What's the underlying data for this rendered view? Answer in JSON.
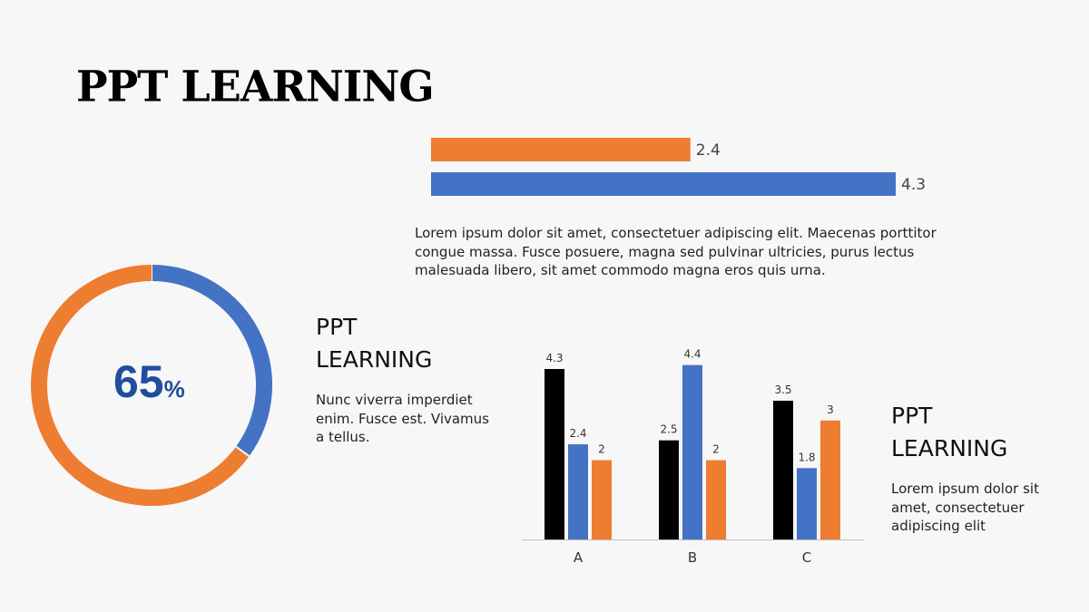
{
  "title": "PPT LEARNING",
  "top_paragraph": "Lorem ipsum dolor sit amet, consectetuer adipiscing elit. Maecenas porttitor congue massa. Fusce posuere, magna sed pulvinar ultricies, purus lectus malesuada libero, sit amet commodo magna eros quis urna.",
  "middle_block": {
    "heading": "PPT LEARNING",
    "text": "Nunc viverra imperdiet enim. Fusce est. Vivamus a tellus."
  },
  "right_block": {
    "heading": "PPT LEARNING",
    "text": "Lorem ipsum dolor sit amet, consectetuer adipiscing elit"
  },
  "colors": {
    "orange": "#ed7d31",
    "blue": "#4472c4",
    "black": "#000000",
    "dark_blue_text": "#1f4e9e"
  },
  "chart_data": [
    {
      "type": "bar",
      "orientation": "horizontal",
      "values": [
        2.4,
        4.3
      ],
      "labels": [
        "2.4",
        "4.3"
      ],
      "colors": [
        "#ed7d31",
        "#4472c4"
      ],
      "xlim": [
        0,
        4.3
      ]
    },
    {
      "type": "pie",
      "variant": "donut",
      "center_label": {
        "value": "65",
        "unit": "%"
      },
      "slices": [
        {
          "value": 35,
          "color": "#4472c4"
        },
        {
          "value": 65,
          "color": "#ed7d31"
        }
      ]
    },
    {
      "type": "bar",
      "categories": [
        "A",
        "B",
        "C"
      ],
      "series": [
        {
          "values": [
            4.3,
            2.5,
            3.5
          ],
          "color": "#000000"
        },
        {
          "values": [
            2.4,
            4.4,
            1.8
          ],
          "color": "#4472c4"
        },
        {
          "values": [
            2,
            2,
            3
          ],
          "color": "#ed7d31"
        }
      ],
      "ylim": [
        0,
        4.4
      ],
      "grid": false,
      "legend": "none"
    }
  ]
}
